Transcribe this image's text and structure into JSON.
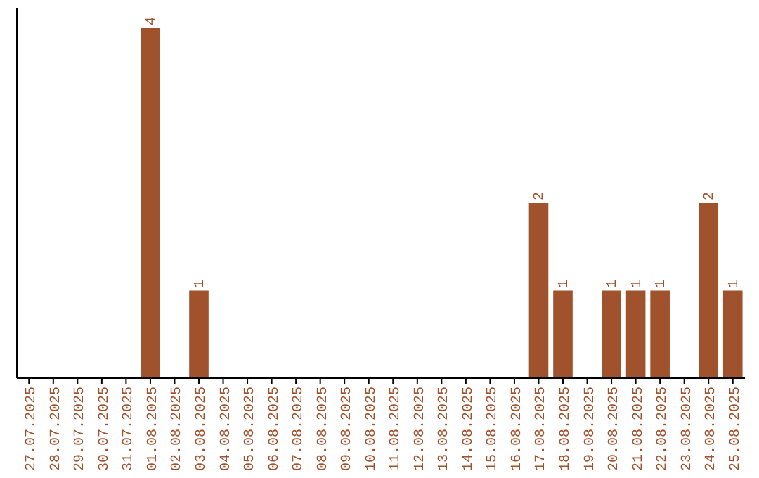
{
  "chart_data": {
    "type": "bar",
    "categories": [
      "27.07.2025",
      "28.07.2025",
      "29.07.2025",
      "30.07.2025",
      "31.07.2025",
      "01.08.2025",
      "02.08.2025",
      "03.08.2025",
      "04.08.2025",
      "05.08.2025",
      "06.08.2025",
      "07.08.2025",
      "08.08.2025",
      "09.08.2025",
      "10.08.2025",
      "11.08.2025",
      "12.08.2025",
      "13.08.2025",
      "14.08.2025",
      "15.08.2025",
      "16.08.2025",
      "17.08.2025",
      "18.08.2025",
      "19.08.2025",
      "20.08.2025",
      "21.08.2025",
      "22.08.2025",
      "23.08.2025",
      "24.08.2025",
      "25.08.2025"
    ],
    "values": [
      0,
      0,
      0,
      0,
      0,
      4,
      0,
      1,
      0,
      0,
      0,
      0,
      0,
      0,
      0,
      0,
      0,
      0,
      0,
      0,
      0,
      2,
      1,
      0,
      1,
      1,
      1,
      0,
      2,
      1
    ],
    "value_labels": [
      null,
      null,
      null,
      null,
      null,
      "4",
      null,
      "1",
      null,
      null,
      null,
      null,
      null,
      null,
      null,
      null,
      null,
      null,
      null,
      null,
      null,
      "2",
      "1",
      null,
      "1",
      "1",
      "1",
      null,
      "2",
      "1"
    ],
    "color": "#a0522d"
  }
}
